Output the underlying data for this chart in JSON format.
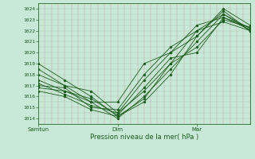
{
  "title": "",
  "xlabel": "Pression niveau de la mer( hPa )",
  "ylim": [
    1013.5,
    1024.5
  ],
  "xlim": [
    0,
    96
  ],
  "yticks": [
    1014,
    1015,
    1016,
    1017,
    1018,
    1019,
    1020,
    1021,
    1022,
    1023,
    1024
  ],
  "xtick_positions": [
    0,
    36,
    72
  ],
  "xtick_labels": [
    "Samtun",
    "Dim",
    "Mar"
  ],
  "bg_color": "#c8e8d8",
  "line_color": "#1a5c1a",
  "grid_color_h": "#a8c8a8",
  "grid_color_v": "#d09898",
  "lines": [
    {
      "x": [
        0,
        12,
        24,
        36,
        48,
        60,
        72,
        84,
        96
      ],
      "y": [
        1019.0,
        1017.5,
        1016.0,
        1014.2,
        1015.5,
        1018.0,
        1021.5,
        1024.0,
        1022.5
      ]
    },
    {
      "x": [
        0,
        12,
        24,
        36,
        48,
        60,
        72,
        84,
        96
      ],
      "y": [
        1018.5,
        1017.0,
        1015.5,
        1014.0,
        1016.0,
        1018.5,
        1021.0,
        1023.5,
        1022.0
      ]
    },
    {
      "x": [
        0,
        12,
        24,
        36,
        48,
        60,
        72,
        84,
        96
      ],
      "y": [
        1018.0,
        1017.0,
        1016.5,
        1014.5,
        1016.5,
        1019.0,
        1020.5,
        1023.0,
        1022.3
      ]
    },
    {
      "x": [
        0,
        12,
        24,
        36,
        48,
        60,
        72,
        84,
        96
      ],
      "y": [
        1017.5,
        1016.5,
        1015.8,
        1014.3,
        1016.8,
        1019.5,
        1020.0,
        1023.2,
        1022.1
      ]
    },
    {
      "x": [
        0,
        12,
        24,
        36,
        48,
        60,
        72,
        84,
        96
      ],
      "y": [
        1017.2,
        1016.2,
        1015.2,
        1014.5,
        1017.5,
        1020.0,
        1021.5,
        1023.8,
        1022.0
      ]
    },
    {
      "x": [
        0,
        12,
        24,
        36,
        48,
        60,
        72,
        84,
        96
      ],
      "y": [
        1017.0,
        1016.8,
        1015.0,
        1014.8,
        1018.0,
        1020.5,
        1022.0,
        1023.5,
        1022.2
      ]
    },
    {
      "x": [
        0,
        12,
        24,
        36,
        48,
        60,
        72,
        84,
        96
      ],
      "y": [
        1016.8,
        1016.5,
        1015.5,
        1015.5,
        1019.0,
        1020.0,
        1022.5,
        1023.2,
        1022.3
      ]
    },
    {
      "x": [
        0,
        12,
        24,
        36,
        48,
        60,
        72,
        84,
        96
      ],
      "y": [
        1016.5,
        1016.0,
        1014.8,
        1014.2,
        1015.8,
        1019.0,
        1022.0,
        1022.8,
        1022.0
      ]
    }
  ]
}
